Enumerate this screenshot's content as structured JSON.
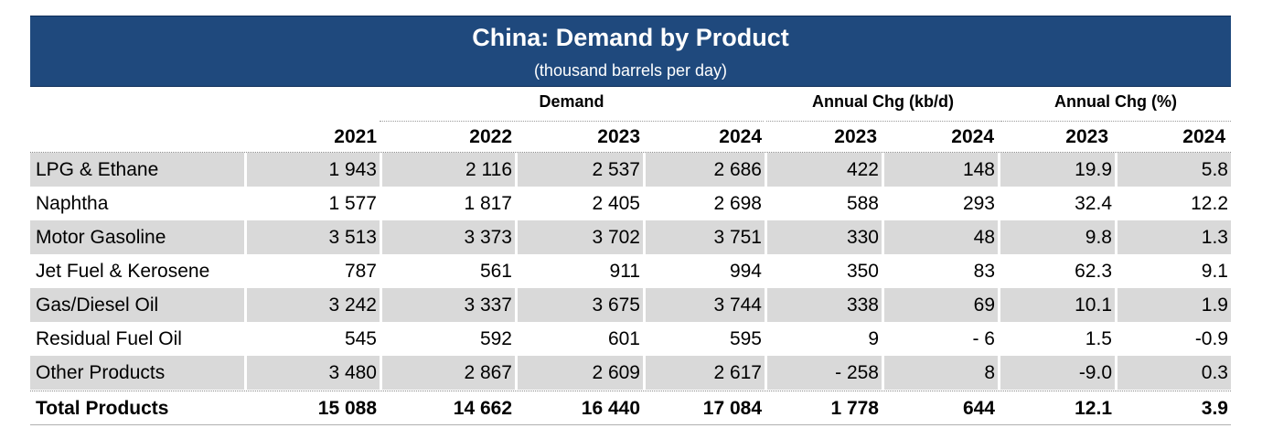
{
  "table": {
    "title": "China: Demand by Product",
    "subtitle": "(thousand barrels per day)",
    "group_headers": [
      "Demand",
      "Annual Chg (kb/d)",
      "Annual Chg (%)"
    ],
    "year_headers": [
      "2021",
      "2022",
      "2023",
      "2024",
      "2023",
      "2024",
      "2023",
      "2024"
    ],
    "rows": [
      {
        "label": "LPG & Ethane",
        "values": [
          "1 943",
          "2 116",
          "2 537",
          "2 686",
          "422",
          "148",
          "19.9",
          "5.8"
        ]
      },
      {
        "label": "Naphtha",
        "values": [
          "1 577",
          "1 817",
          "2 405",
          "2 698",
          "588",
          "293",
          "32.4",
          "12.2"
        ]
      },
      {
        "label": "Motor Gasoline",
        "values": [
          "3 513",
          "3 373",
          "3 702",
          "3 751",
          "330",
          "48",
          "9.8",
          "1.3"
        ]
      },
      {
        "label": "Jet Fuel & Kerosene",
        "values": [
          "787",
          "561",
          "911",
          "994",
          "350",
          "83",
          "62.3",
          "9.1"
        ]
      },
      {
        "label": "Gas/Diesel Oil",
        "values": [
          "3 242",
          "3 337",
          "3 675",
          "3 744",
          "338",
          "69",
          "10.1",
          "1.9"
        ]
      },
      {
        "label": "Residual Fuel Oil",
        "values": [
          "545",
          "592",
          "601",
          "595",
          "9",
          "- 6",
          "1.5",
          "-0.9"
        ]
      },
      {
        "label": "Other Products",
        "values": [
          "3 480",
          "2 867",
          "2 609",
          "2 617",
          "- 258",
          "8",
          "-9.0",
          "0.3"
        ]
      }
    ],
    "total": {
      "label": "Total Products",
      "values": [
        "15 088",
        "14 662",
        "16 440",
        "17 084",
        "1 778",
        "644",
        "12.1",
        "3.9"
      ]
    },
    "colors": {
      "header_bg": "#1f497d",
      "header_text": "#ffffff",
      "row_shade": "#d9d9d9"
    }
  }
}
